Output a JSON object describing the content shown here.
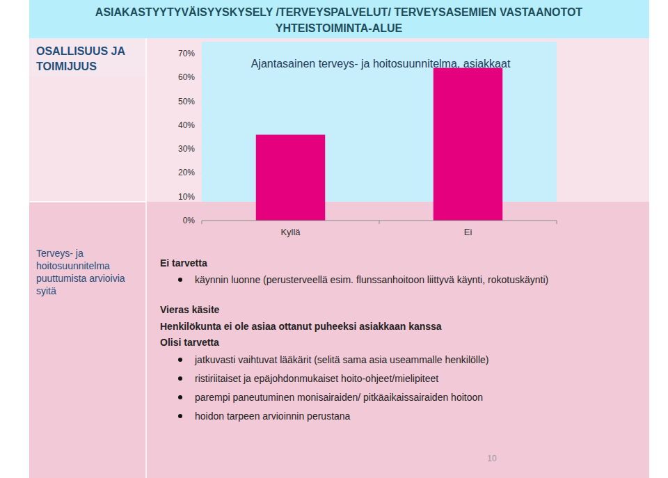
{
  "chart_data": {
    "type": "bar",
    "title": "Ajantasainen terveys- ja hoitosuunnitelma, asiakkaat",
    "categories": [
      "Kyllä",
      "Ei"
    ],
    "values": [
      36,
      64
    ],
    "color": "#e5007d",
    "ylim": [
      0,
      70
    ],
    "yticks": [
      {
        "value": 0,
        "label": "0%"
      },
      {
        "value": 10,
        "label": "10%"
      },
      {
        "value": 20,
        "label": "20%"
      },
      {
        "value": 30,
        "label": "30%"
      },
      {
        "value": 40,
        "label": "40%"
      },
      {
        "value": 50,
        "label": "50%"
      },
      {
        "value": 60,
        "label": "60%"
      },
      {
        "value": 70,
        "label": "70%"
      }
    ],
    "grid": false
  },
  "slide": {
    "header": [
      "ASIAKASTYYTYVÄISYYSKYSELY /TERVEYSPALVELUT/ TERVEYSASEMIEN VASTAANOTOT",
      "YHTEISTOIMINTA-ALUE"
    ],
    "section": [
      "OSALLISUUS JA",
      "TOIMIJUUS"
    ],
    "side_label": [
      "Terveys- ja",
      "hoitosuunnitelma",
      "puuttumista arvioivia",
      "syitä"
    ],
    "body": [
      {
        "style": "heading",
        "text": "Ei tarvetta"
      },
      {
        "style": "bullet",
        "text": "käynnin luonne (perusterveellä esim. flunssanhoitoon liittyvä käynti, rokotuskäynti)"
      },
      {
        "style": "heading",
        "text": "Vieras käsite"
      },
      {
        "style": "heading",
        "text": "Henkilökunta ei ole asiaa ottanut puheeksi asiakkaan kanssa"
      },
      {
        "style": "heading",
        "text": "Olisi tarvetta"
      },
      {
        "style": "bullet",
        "text": "jatkuvasti vaihtuvat lääkärit (selitä sama asia useammalle henkilölle)"
      },
      {
        "style": "bullet",
        "text": "ristiriitaiset ja epäjohdonmukaiset hoito-ohjeet/mielipiteet"
      },
      {
        "style": "bullet",
        "text": "parempi paneutuminen monisairaiden/ pitkäaikaissairaiden hoitoon"
      },
      {
        "style": "bullet",
        "text": "hoidon tarpeen arvioinnin perustana"
      }
    ],
    "page_number": "10"
  }
}
